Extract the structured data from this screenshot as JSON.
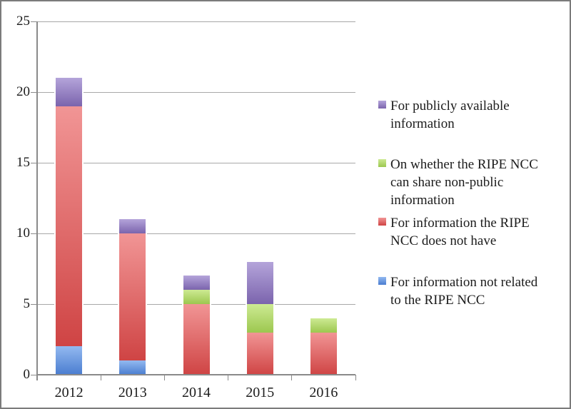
{
  "chart_data": {
    "type": "bar",
    "stacked": true,
    "title": "",
    "xlabel": "",
    "ylabel": "",
    "categories": [
      "2012",
      "2013",
      "2014",
      "2015",
      "2016"
    ],
    "series": [
      {
        "name": "For information not related to the RIPE NCC",
        "values": [
          2,
          1,
          0,
          0,
          0
        ],
        "color_top": "#93b9f0",
        "color_bottom": "#4a7dd0"
      },
      {
        "name": "For information the RIPE NCC does not have",
        "values": [
          17,
          9,
          5,
          3,
          3
        ],
        "color_top": "#f19595",
        "color_bottom": "#cf4444"
      },
      {
        "name": "On whether the RIPE NCC can share non-public information",
        "values": [
          0,
          0,
          1,
          2,
          1
        ],
        "color_top": "#cdea93",
        "color_bottom": "#9cc74f"
      },
      {
        "name": "For publicly available information",
        "values": [
          2,
          1,
          1,
          3,
          0
        ],
        "color_top": "#b4a4da",
        "color_bottom": "#7b64ad"
      }
    ],
    "totals": [
      21,
      11,
      7,
      8,
      4
    ],
    "ylim": [
      0,
      25
    ],
    "yticks": [
      0,
      5,
      10,
      15,
      20,
      25
    ],
    "grid": true,
    "legend_position": "right"
  },
  "legend": {
    "items": [
      {
        "series": 3,
        "label": "For publicly available information",
        "lines": [
          "For publicly available",
          "information"
        ]
      },
      {
        "series": 2,
        "label": "On whether the RIPE NCC can share non-public information",
        "lines": [
          "On whether the RIPE NCC",
          "can share non-public",
          "information"
        ]
      },
      {
        "series": 1,
        "label": "For information the RIPE NCC does not have",
        "lines": [
          "For information the RIPE",
          "NCC does not have"
        ]
      },
      {
        "series": 0,
        "label": "For information not related to the RIPE NCC",
        "lines": [
          "For information not related",
          "to the RIPE NCC"
        ]
      }
    ]
  },
  "colors": {
    "grid": "#a8a8a8",
    "axis": "#8a8a8a",
    "border": "#7b7b7b",
    "text": "#1c1c1c"
  }
}
